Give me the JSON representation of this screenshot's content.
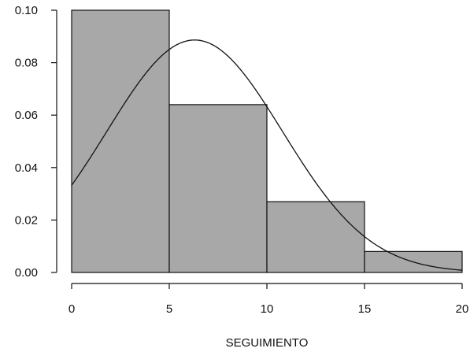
{
  "chart_data": {
    "type": "bar",
    "subtype": "histogram-with-density-curve",
    "title": "",
    "xlabel": "SEGUIMIENTO",
    "ylabel": "",
    "xlim": [
      0,
      20
    ],
    "ylim": [
      0,
      0.1
    ],
    "x_ticks": [
      "0",
      "5",
      "10",
      "15",
      "20"
    ],
    "y_ticks": [
      "0.00",
      "0.02",
      "0.04",
      "0.06",
      "0.08",
      "0.10"
    ],
    "bins": [
      {
        "from": 0,
        "to": 5,
        "density": 0.1
      },
      {
        "from": 5,
        "to": 10,
        "density": 0.064
      },
      {
        "from": 10,
        "to": 15,
        "density": 0.027
      },
      {
        "from": 15,
        "to": 20,
        "density": 0.008
      }
    ],
    "curve": {
      "type": "normal-density",
      "mean": 6.3,
      "sd": 4.5
    },
    "grid": false,
    "bar_color": "#a8a8a8",
    "edge_color": "#111111"
  }
}
